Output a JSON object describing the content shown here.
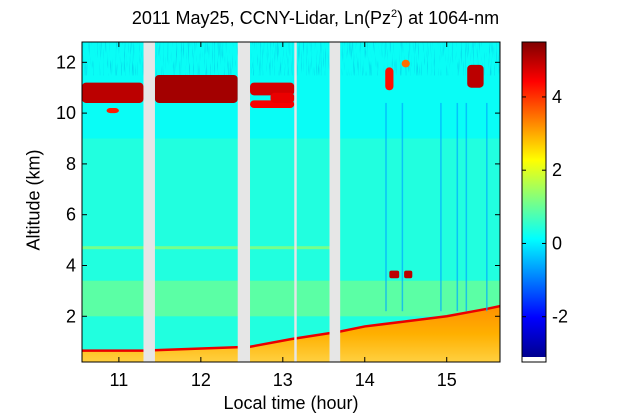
{
  "chart_data": {
    "type": "heatmap",
    "title": {
      "prefix": "2011 May25, CCNY-Lidar, Ln(Pz",
      "superscript": "2",
      "suffix": ") at 1064-nm"
    },
    "xlabel": "Local time (hour)",
    "ylabel": "Altitude (km)",
    "xlim": [
      10.55,
      15.65
    ],
    "ylim": [
      0.2,
      12.8
    ],
    "x_ticks": [
      "11",
      "12",
      "13",
      "14",
      "15"
    ],
    "y_ticks": [
      "2",
      "4",
      "6",
      "8",
      "10",
      "12"
    ],
    "colorbar": {
      "range": [
        -3.1,
        5.5
      ],
      "ticks": [
        "-2",
        "0",
        "2",
        "4"
      ],
      "colormap": [
        "#00008f",
        "#0000ff",
        "#0080ff",
        "#00ffff",
        "#80ff80",
        "#ffff00",
        "#ff8000",
        "#ff0000",
        "#800000"
      ]
    },
    "data_gaps": [
      [
        11.3,
        11.44
      ],
      [
        12.45,
        12.6
      ],
      [
        13.14,
        13.17
      ],
      [
        13.57,
        13.7
      ]
    ],
    "layers": {
      "cirrus_cloud": [
        {
          "x": [
            10.55,
            11.3
          ],
          "altitude": [
            10.4,
            11.2
          ],
          "value": 5.0
        },
        {
          "x": [
            10.85,
            11.0
          ],
          "altitude": [
            10.0,
            10.2
          ],
          "value": 4.2
        },
        {
          "x": [
            11.44,
            12.45
          ],
          "altitude": [
            10.4,
            11.5
          ],
          "value": 5.2
        },
        {
          "x": [
            12.6,
            13.14
          ],
          "altitude": [
            10.7,
            11.2
          ],
          "value": 4.8
        },
        {
          "x": [
            12.6,
            13.14
          ],
          "altitude": [
            10.2,
            10.5
          ],
          "value": 4.5
        },
        {
          "x": [
            12.85,
            13.14
          ],
          "altitude": [
            10.4,
            10.8
          ],
          "value": 4.6
        },
        {
          "x": [
            14.25,
            14.35
          ],
          "altitude": [
            10.9,
            11.8
          ],
          "value": 4.3
        },
        {
          "x": [
            15.25,
            15.45
          ],
          "altitude": [
            11.0,
            11.9
          ],
          "value": 5.0
        },
        {
          "x": [
            14.45,
            14.55
          ],
          "altitude": [
            11.8,
            12.1
          ],
          "value": 3.5
        }
      ],
      "elevated_layer": [
        {
          "x": [
            14.3,
            14.42
          ],
          "altitude": [
            3.5,
            3.8
          ],
          "value": 5.0
        },
        {
          "x": [
            14.48,
            14.58
          ],
          "altitude": [
            3.5,
            3.8
          ],
          "value": 5.0
        }
      ],
      "boundary_layer_top": {
        "x": [
          10.55,
          11.3,
          12.6,
          13.1,
          13.7,
          14.0,
          14.5,
          15.0,
          15.5,
          15.65
        ],
        "altitude": [
          0.65,
          0.65,
          0.8,
          1.1,
          1.4,
          1.6,
          1.8,
          2.0,
          2.3,
          2.4
        ]
      },
      "aerosol_band_km": 4.7
    }
  }
}
